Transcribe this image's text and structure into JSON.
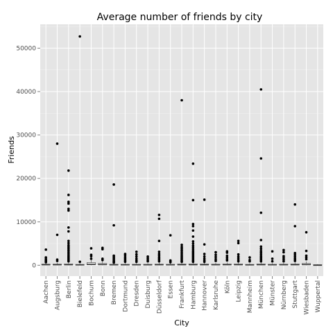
{
  "chart_data": {
    "type": "boxplot",
    "title": "Average number of friends by city",
    "xlabel": "City",
    "ylabel": "Friends",
    "ylim": [
      -2500,
      55500
    ],
    "yticks": [
      0,
      10000,
      20000,
      30000,
      40000,
      50000
    ],
    "ytick_labels": [
      "0",
      "10000",
      "20000",
      "30000",
      "40000",
      "50000"
    ],
    "grid": true,
    "legend": "none",
    "colors": {
      "panel": "#e5e5e5",
      "grid_major": "#ffffff",
      "grid_minor": "#f2f2f2",
      "box_fill": "#ffffff",
      "box_line": "#333333",
      "outlier": "#000000"
    },
    "categories": [
      "Aachen",
      "Augsburg",
      "Berlin",
      "Bielefeld",
      "Bochum",
      "Bonn",
      "Bremen",
      "Dortmund",
      "Dresden",
      "Duisburg",
      "Düsseldorf",
      "Essen",
      "Frankfurt",
      "Hamburg",
      "Hannover",
      "Karlsruhe",
      "Köln",
      "Leipzig",
      "Mannheim",
      "München",
      "Münster",
      "Nürnberg",
      "Stuttgart",
      "Wiesbaden",
      "Wuppertal"
    ],
    "boxes": [
      {
        "lower": 0,
        "q1": 50,
        "median": 120,
        "q3": 250,
        "upper": 600,
        "outliers": [
          3600,
          1800,
          1400,
          1100,
          900,
          700
        ]
      },
      {
        "lower": 0,
        "q1": 50,
        "median": 120,
        "q3": 250,
        "upper": 600,
        "outliers": [
          28000,
          7000,
          1300,
          1000
        ]
      },
      {
        "lower": 0,
        "q1": 50,
        "median": 140,
        "q3": 300,
        "upper": 700,
        "outliers": [
          21800,
          16200,
          14600,
          14200,
          13000,
          12600,
          8700,
          7800,
          5600,
          5100,
          4600,
          4200,
          3800,
          3400,
          3000,
          2600,
          2200,
          1900,
          1600,
          1300,
          1100,
          900
        ]
      },
      {
        "lower": 0,
        "q1": 30,
        "median": 90,
        "q3": 200,
        "upper": 500,
        "outliers": [
          52700,
          800
        ]
      },
      {
        "lower": 0,
        "q1": 100,
        "median": 250,
        "q3": 600,
        "upper": 1200,
        "outliers": [
          3900,
          2400,
          2100,
          1500
        ]
      },
      {
        "lower": 0,
        "q1": 80,
        "median": 180,
        "q3": 400,
        "upper": 900,
        "outliers": [
          4000,
          3700,
          1500,
          1200
        ]
      },
      {
        "lower": 0,
        "q1": 50,
        "median": 100,
        "q3": 220,
        "upper": 500,
        "outliers": [
          18600,
          9200,
          2200,
          1900,
          1600,
          1300,
          1000,
          800,
          600
        ]
      },
      {
        "lower": 0,
        "q1": 50,
        "median": 100,
        "q3": 220,
        "upper": 500,
        "outliers": [
          2600,
          2300,
          1900,
          1600,
          1300,
          1000,
          800
        ]
      },
      {
        "lower": 0,
        "q1": 50,
        "median": 100,
        "q3": 220,
        "upper": 500,
        "outliers": [
          3100,
          2500,
          2000,
          1500,
          1100,
          800
        ]
      },
      {
        "lower": 0,
        "q1": 50,
        "median": 100,
        "q3": 220,
        "upper": 500,
        "outliers": [
          2000,
          1600,
          1200,
          900
        ]
      },
      {
        "lower": 0,
        "q1": 50,
        "median": 120,
        "q3": 250,
        "upper": 600,
        "outliers": [
          11600,
          10700,
          5600,
          3100,
          2600,
          2200,
          1800,
          1500,
          1200,
          900
        ]
      },
      {
        "lower": 0,
        "q1": 50,
        "median": 100,
        "q3": 220,
        "upper": 500,
        "outliers": [
          6900,
          1100,
          900,
          700
        ]
      },
      {
        "lower": 0,
        "q1": 50,
        "median": 130,
        "q3": 280,
        "upper": 650,
        "outliers": [
          38000,
          4700,
          4200,
          3800,
          3400,
          3000,
          2600,
          2200,
          1900,
          1600,
          1300,
          1000,
          800
        ]
      },
      {
        "lower": 0,
        "q1": 50,
        "median": 140,
        "q3": 300,
        "upper": 700,
        "outliers": [
          23400,
          15000,
          9500,
          9000,
          8000,
          6600,
          5500,
          5000,
          4500,
          4100,
          3700,
          3300,
          3000,
          2700,
          2400,
          2100,
          1800,
          1500,
          1200,
          1000,
          800
        ]
      },
      {
        "lower": 0,
        "q1": 50,
        "median": 120,
        "q3": 260,
        "upper": 600,
        "outliers": [
          15100,
          4800,
          2600,
          2000,
          1500,
          1100,
          800
        ]
      },
      {
        "lower": 0,
        "q1": 50,
        "median": 110,
        "q3": 240,
        "upper": 550,
        "outliers": [
          3000,
          2400,
          1900,
          1400,
          1000
        ]
      },
      {
        "lower": 0,
        "q1": 60,
        "median": 130,
        "q3": 280,
        "upper": 650,
        "outliers": [
          3200,
          2900,
          2200,
          1800,
          1400,
          1100
        ]
      },
      {
        "lower": 0,
        "q1": 60,
        "median": 130,
        "q3": 280,
        "upper": 650,
        "outliers": [
          5600,
          5100,
          2500,
          2000,
          1600,
          1200,
          900
        ]
      },
      {
        "lower": 0,
        "q1": 50,
        "median": 100,
        "q3": 200,
        "upper": 450,
        "outliers": [
          1800,
          1200,
          900
        ]
      },
      {
        "lower": 0,
        "q1": 50,
        "median": 140,
        "q3": 300,
        "upper": 700,
        "outliers": [
          40500,
          24600,
          12100,
          5800,
          4300,
          3800,
          3300,
          2900,
          2500,
          2100,
          1800,
          1500,
          1200,
          900
        ]
      },
      {
        "lower": 0,
        "q1": 50,
        "median": 100,
        "q3": 220,
        "upper": 500,
        "outliers": [
          3200,
          1500,
          900
        ]
      },
      {
        "lower": 0,
        "q1": 50,
        "median": 110,
        "q3": 240,
        "upper": 550,
        "outliers": [
          3500,
          3000,
          2100,
          1700,
          1300,
          900
        ]
      },
      {
        "lower": 0,
        "q1": 50,
        "median": 130,
        "q3": 280,
        "upper": 650,
        "outliers": [
          14000,
          9000,
          2800,
          2400,
          2000,
          1600,
          1300,
          1000
        ]
      },
      {
        "lower": 0,
        "q1": 80,
        "median": 180,
        "q3": 400,
        "upper": 900,
        "outliers": [
          7600,
          3300,
          2200,
          1800,
          1400
        ]
      },
      {
        "lower": 0,
        "q1": 20,
        "median": 60,
        "q3": 120,
        "upper": 250,
        "outliers": []
      }
    ]
  }
}
